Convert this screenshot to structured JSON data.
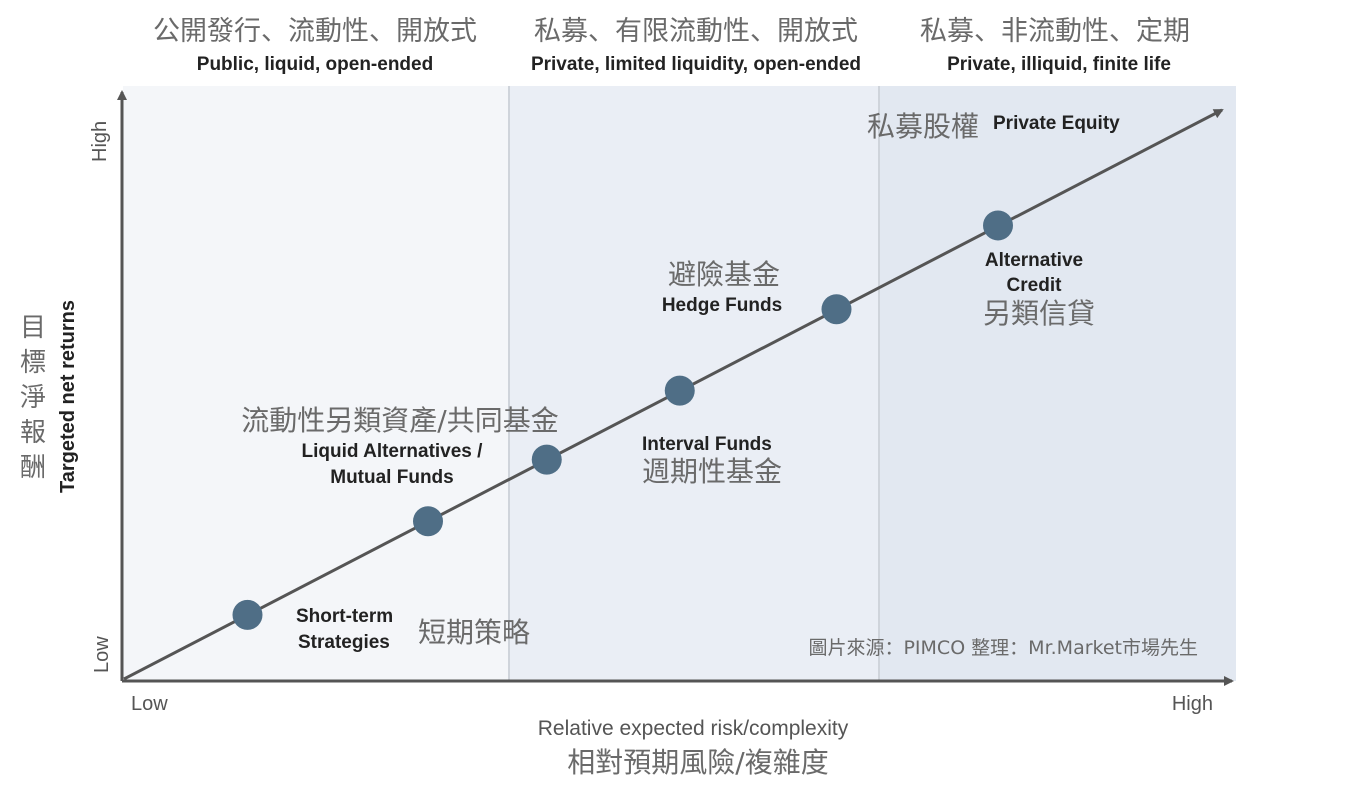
{
  "colors": {
    "zone1": "#f4f6f9",
    "zone2": "#eaeef5",
    "zone3": "#e2e8f1",
    "divider": "#cfd4db",
    "axis": "#555555",
    "line": "#555555",
    "point": "#4f6e86"
  },
  "zones": [
    {
      "title_zh": "公開發行、流動性、開放式",
      "title_en": "Public, liquid, open-ended"
    },
    {
      "title_zh": "私募、有限流動性、開放式",
      "title_en": "Private, limited liquidity, open-ended"
    },
    {
      "title_zh": "私募、非流動性、定期",
      "title_en": "Private, illiquid, finite life"
    }
  ],
  "y_axis": {
    "label_zh": "目標淨報酬",
    "label_en": "Targeted net returns",
    "low": "Low",
    "high": "High"
  },
  "x_axis": {
    "label_en": "Relative expected risk/complexity",
    "label_zh": "相對預期風險/複雜度",
    "low": "Low",
    "high": "High"
  },
  "points": [
    {
      "zh": "短期策略",
      "en": "Short-term Strategies",
      "risk": 1.3,
      "return": 1.3
    },
    {
      "zh": "流動性另類資產/共同基金",
      "en": "Liquid Alternatives / Mutual Funds",
      "risk": 3.2,
      "return": 3.2
    },
    {
      "zh": "週期性基金",
      "en": "Interval Funds",
      "risk": 4.45,
      "return": 4.45
    },
    {
      "zh": "避險基金",
      "en": "Hedge Funds",
      "risk": 5.85,
      "return": 5.85
    },
    {
      "zh": "另類信貸",
      "en": "Alternative Credit",
      "risk": 7.5,
      "return": 7.5
    },
    {
      "zh": "私募股權",
      "en": "Private Equity",
      "risk": 9.2,
      "return": 9.2
    }
  ],
  "source": "圖片來源：PIMCO  整理：Mr.Market市場先生"
}
